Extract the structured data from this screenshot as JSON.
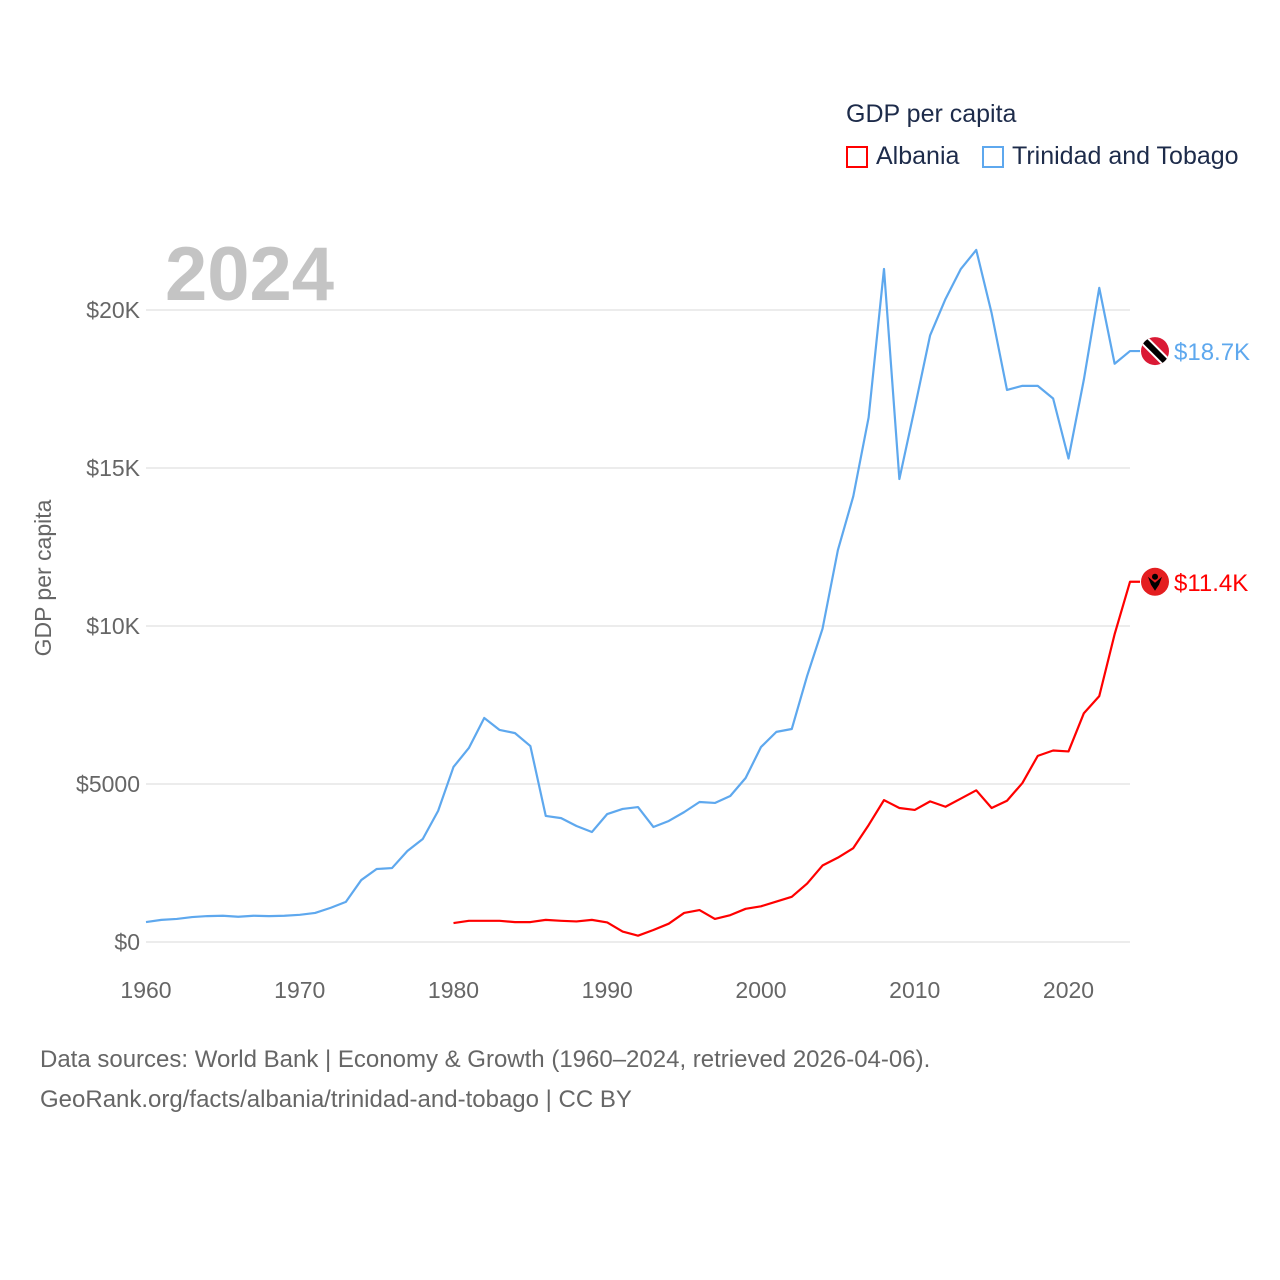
{
  "chart_data": {
    "type": "line",
    "title": "GDP per capita",
    "year_label": "2024",
    "xlabel": "",
    "ylabel": "GDP per capita",
    "xlim": [
      1960,
      2024
    ],
    "ylim": [
      0,
      22500
    ],
    "x_ticks": [
      1960,
      1970,
      1980,
      1990,
      2000,
      2010,
      2020
    ],
    "x_tick_labels": [
      "1960",
      "1970",
      "1980",
      "1990",
      "2000",
      "2010",
      "2020"
    ],
    "y_ticks": [
      0,
      5000,
      10000,
      15000,
      20000
    ],
    "y_tick_labels": [
      "$0",
      "$5000",
      "$10K",
      "$15K",
      "$20K"
    ],
    "grid": true,
    "legend_position": "top-right",
    "series": [
      {
        "name": "Albania",
        "color": "#ff0000",
        "end_label": "$11.4K",
        "flag_icon": "albania-flag",
        "start_year": 1980,
        "values": [
          600,
          670,
          670,
          670,
          630,
          630,
          700,
          670,
          650,
          700,
          620,
          330,
          200,
          380,
          580,
          920,
          1010,
          730,
          850,
          1050,
          1130,
          1280,
          1430,
          1850,
          2420,
          2670,
          2970,
          3700,
          4490,
          4240,
          4180,
          4450,
          4280,
          4540,
          4800,
          4240,
          4470,
          5030,
          5890,
          6060,
          6030,
          7240,
          7780,
          9740,
          11400
        ]
      },
      {
        "name": "Trinidad and Tobago",
        "color": "#5ea8ee",
        "end_label": "$18.7K",
        "flag_icon": "trinidad-and-tobago-flag",
        "start_year": 1960,
        "values": [
          630,
          700,
          730,
          790,
          820,
          830,
          800,
          830,
          820,
          830,
          860,
          920,
          1080,
          1270,
          1960,
          2310,
          2340,
          2880,
          3260,
          4150,
          5540,
          6140,
          7090,
          6710,
          6610,
          6200,
          3990,
          3920,
          3670,
          3480,
          4050,
          4210,
          4270,
          3640,
          3830,
          4110,
          4430,
          4400,
          4620,
          5190,
          6170,
          6650,
          6740,
          8420,
          9910,
          12400,
          14100,
          16600,
          21300,
          14650,
          16900,
          19200,
          20350,
          21300,
          21900,
          19900,
          17470,
          17600,
          17600,
          17200,
          15300,
          17800,
          20700,
          18300,
          18700
        ]
      }
    ]
  },
  "footer": {
    "line1": "Data sources: World Bank | Economy & Growth (1960–2024, retrieved 2026-04-06).",
    "line2": "GeoRank.org/facts/albania/trinidad-and-tobago | CC BY"
  }
}
